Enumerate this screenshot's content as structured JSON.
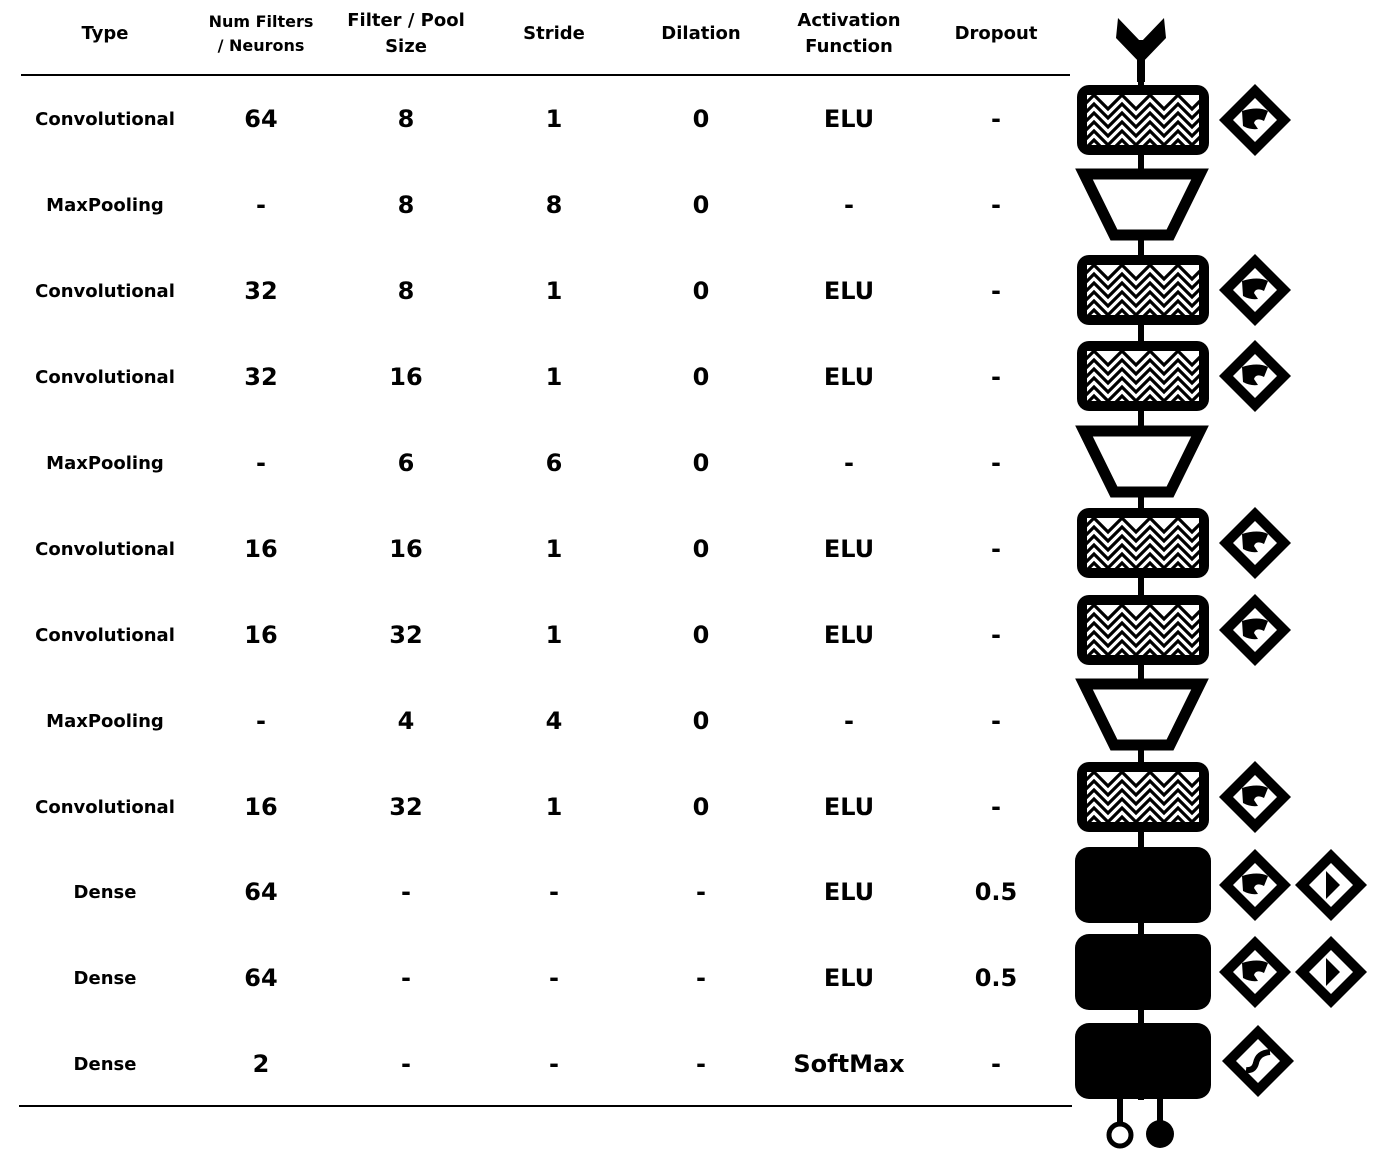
{
  "table": {
    "headers": {
      "type": "Type",
      "filters": "Num Filters\n/ Neurons",
      "size": "Filter / Pool\nSize",
      "stride": "Stride",
      "dilation": "Dilation",
      "activation": "Activation\nFunction",
      "dropout": "Dropout"
    },
    "rows": [
      {
        "type": "Convolutional",
        "filters": "64",
        "size": "8",
        "stride": "1",
        "dilation": "0",
        "activation": "ELU",
        "dropout": "-"
      },
      {
        "type": "MaxPooling",
        "filters": "-",
        "size": "8",
        "stride": "8",
        "dilation": "0",
        "activation": "-",
        "dropout": "-"
      },
      {
        "type": "Convolutional",
        "filters": "32",
        "size": "8",
        "stride": "1",
        "dilation": "0",
        "activation": "ELU",
        "dropout": "-"
      },
      {
        "type": "Convolutional",
        "filters": "32",
        "size": "16",
        "stride": "1",
        "dilation": "0",
        "activation": "ELU",
        "dropout": "-"
      },
      {
        "type": "MaxPooling",
        "filters": "-",
        "size": "6",
        "stride": "6",
        "dilation": "0",
        "activation": "-",
        "dropout": "-"
      },
      {
        "type": "Convolutional",
        "filters": "16",
        "size": "16",
        "stride": "1",
        "dilation": "0",
        "activation": "ELU",
        "dropout": "-"
      },
      {
        "type": "Convolutional",
        "filters": "16",
        "size": "32",
        "stride": "1",
        "dilation": "0",
        "activation": "ELU",
        "dropout": "-"
      },
      {
        "type": "MaxPooling",
        "filters": "-",
        "size": "4",
        "stride": "4",
        "dilation": "0",
        "activation": "-",
        "dropout": "-"
      },
      {
        "type": "Convolutional",
        "filters": "16",
        "size": "32",
        "stride": "1",
        "dilation": "0",
        "activation": "ELU",
        "dropout": "-"
      },
      {
        "type": "Dense",
        "filters": "64",
        "size": "-",
        "stride": "-",
        "dilation": "-",
        "activation": "ELU",
        "dropout": "0.5"
      },
      {
        "type": "Dense",
        "filters": "64",
        "size": "-",
        "stride": "-",
        "dilation": "-",
        "activation": "ELU",
        "dropout": "0.5"
      },
      {
        "type": "Dense",
        "filters": "2",
        "size": "-",
        "stride": "-",
        "dilation": "-",
        "activation": "SoftMax",
        "dropout": "-"
      }
    ]
  },
  "diagram": {
    "icons": {
      "input": "input-arrow-icon",
      "conv": "convolution-block-icon",
      "pool": "pooling-trapezoid-icon",
      "dense": "dense-block-icon",
      "elu": "elu-activation-icon",
      "softmax": "softmax-activation-icon",
      "dropout": "dropout-icon",
      "output": "output-nodes-icon"
    }
  }
}
